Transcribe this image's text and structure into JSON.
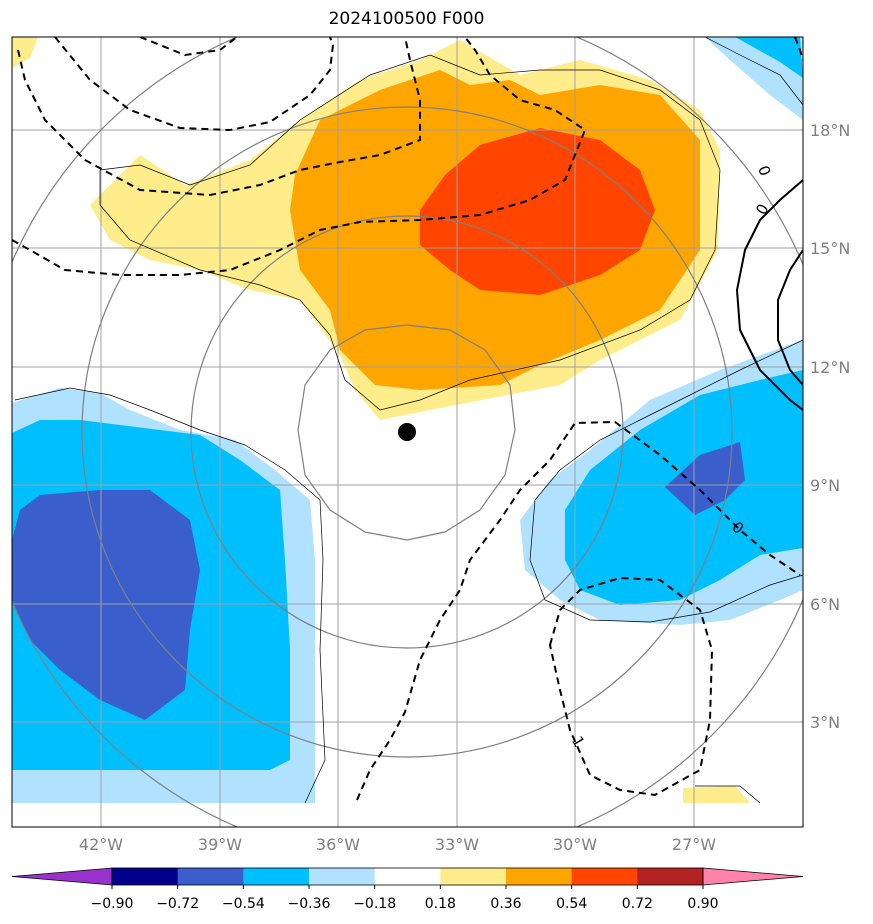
{
  "title": "2024100500 F000",
  "map": {
    "lon_ticks": [
      "42°W",
      "39°W",
      "36°W",
      "33°W",
      "30°W",
      "27°W"
    ],
    "lat_ticks": [
      "18°N",
      "15°N",
      "12°N",
      "9°N",
      "6°N",
      "3°N"
    ],
    "contour_labels": [
      "0",
      "0",
      "1",
      "0"
    ],
    "center_marker": "storm-center-dot"
  },
  "colorbar": {
    "levels": [
      "−0.90",
      "−0.72",
      "−0.54",
      "−0.36",
      "−0.18",
      "0.18",
      "0.36",
      "0.54",
      "0.72",
      "0.90"
    ],
    "colors": [
      "#9932CC",
      "#00008B",
      "#3A5FCD",
      "#00BFFF",
      "#B0E2FF",
      "#FFFFFF",
      "#FFEC8B",
      "#FFA500",
      "#FF4500",
      "#B22222",
      "#FF82AB"
    ]
  },
  "colors": {
    "orange": "#FFA500",
    "red_orange": "#FF4500",
    "light_yellow": "#FFEC8B",
    "deep_sky": "#00BFFF",
    "light_sky": "#B0E2FF",
    "royal_blue": "#3A5FCD",
    "grid": "#A0A0A0"
  }
}
